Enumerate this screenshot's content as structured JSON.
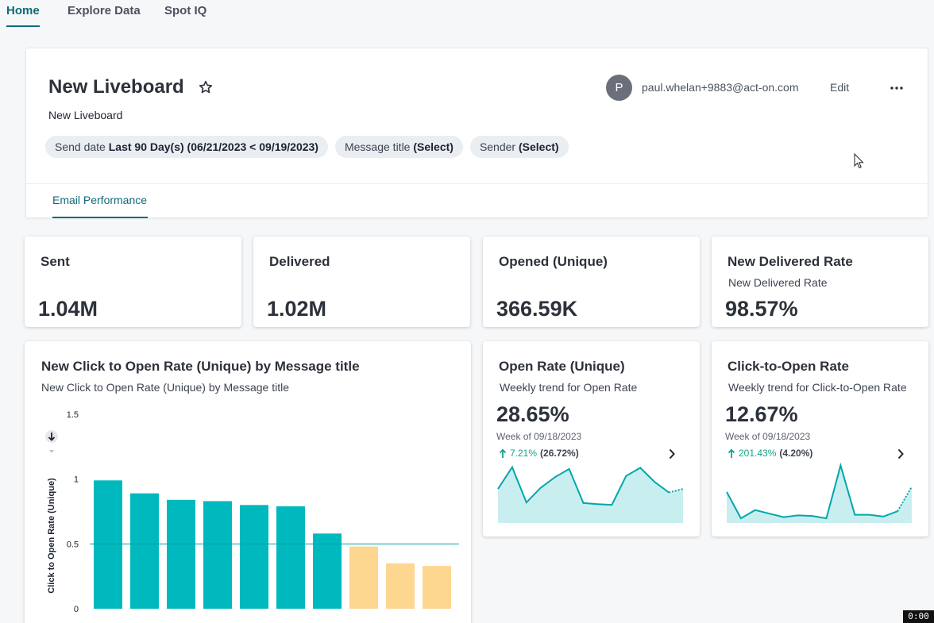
{
  "nav": {
    "tabs": [
      "Home",
      "Explore Data",
      "Spot IQ"
    ]
  },
  "liveboard": {
    "title": "New Liveboard",
    "subtitle": "New Liveboard",
    "user_initial": "P",
    "user_email": "paul.whelan+9883@act-on.com",
    "edit_label": "Edit",
    "filters": [
      {
        "label": "Send date",
        "value": "Last 90 Day(s) (06/21/2023 < 09/19/2023)"
      },
      {
        "label": "Message title",
        "value": "(Select)"
      },
      {
        "label": "Sender",
        "value": "(Select)"
      }
    ],
    "tab": "Email Performance"
  },
  "kpis": [
    {
      "title": "Sent",
      "value": "1.04M"
    },
    {
      "title": "Delivered",
      "value": "1.02M"
    },
    {
      "title": "Opened (Unique)",
      "value": "366.59K"
    },
    {
      "title": "New Delivered Rate",
      "description": "New Delivered Rate",
      "value": "98.57%"
    }
  ],
  "trends": [
    {
      "title": "Open Rate (Unique)",
      "subtitle": "Weekly trend for Open Rate",
      "value": "28.65%",
      "week": "Week of 09/18/2023",
      "change": "7.21%",
      "prev": "(26.72%)",
      "spark": [
        0.58,
        0.95,
        0.35,
        0.6,
        0.78,
        0.92,
        0.34,
        0.32,
        0.31,
        0.8,
        0.94,
        0.7,
        0.52,
        0.58
      ]
    },
    {
      "title": "Click-to-Open Rate",
      "subtitle": "Weekly trend for Click-to-Open Rate",
      "value": "12.67%",
      "week": "Week of 09/18/2023",
      "change": "201.43%",
      "prev": "(4.20%)",
      "spark": [
        0.53,
        0.08,
        0.22,
        0.16,
        0.1,
        0.13,
        0.12,
        0.08,
        0.98,
        0.14,
        0.14,
        0.11,
        0.2,
        0.62
      ]
    }
  ],
  "colors": {
    "teal": "#00b9be",
    "orange": "#fdd690",
    "accent": "#0e6b78",
    "green": "#14a38b",
    "spark_fill": "#c9eef0",
    "spark_line": "#00a6ab"
  },
  "icons": {
    "star": "star-icon",
    "more": "more-horizontal-icon",
    "arrow_up": "arrow-up-icon",
    "chevron": "chevron-right-icon"
  },
  "chart_data": {
    "type": "bar",
    "title": "New Click to Open Rate (Unique) by Message title",
    "subtitle": "New Click to Open Rate (Unique) by Message title",
    "ylabel": "Click to Open Rate (Unique)",
    "xlabel": "",
    "ylim": [
      0,
      1.5
    ],
    "yticks": [
      "0",
      "0.5",
      "1",
      "1.5"
    ],
    "ytick_values": [
      0,
      0.5,
      1,
      1.5
    ],
    "reference_line": 0.5,
    "values": [
      0.99,
      0.89,
      0.84,
      0.83,
      0.8,
      0.79,
      0.58,
      0.48,
      0.35,
      0.33
    ],
    "bar_colors": [
      "#00b9be",
      "#00b9be",
      "#00b9be",
      "#00b9be",
      "#00b9be",
      "#00b9be",
      "#00b9be",
      "#fdd690",
      "#fdd690",
      "#fdd690"
    ]
  }
}
